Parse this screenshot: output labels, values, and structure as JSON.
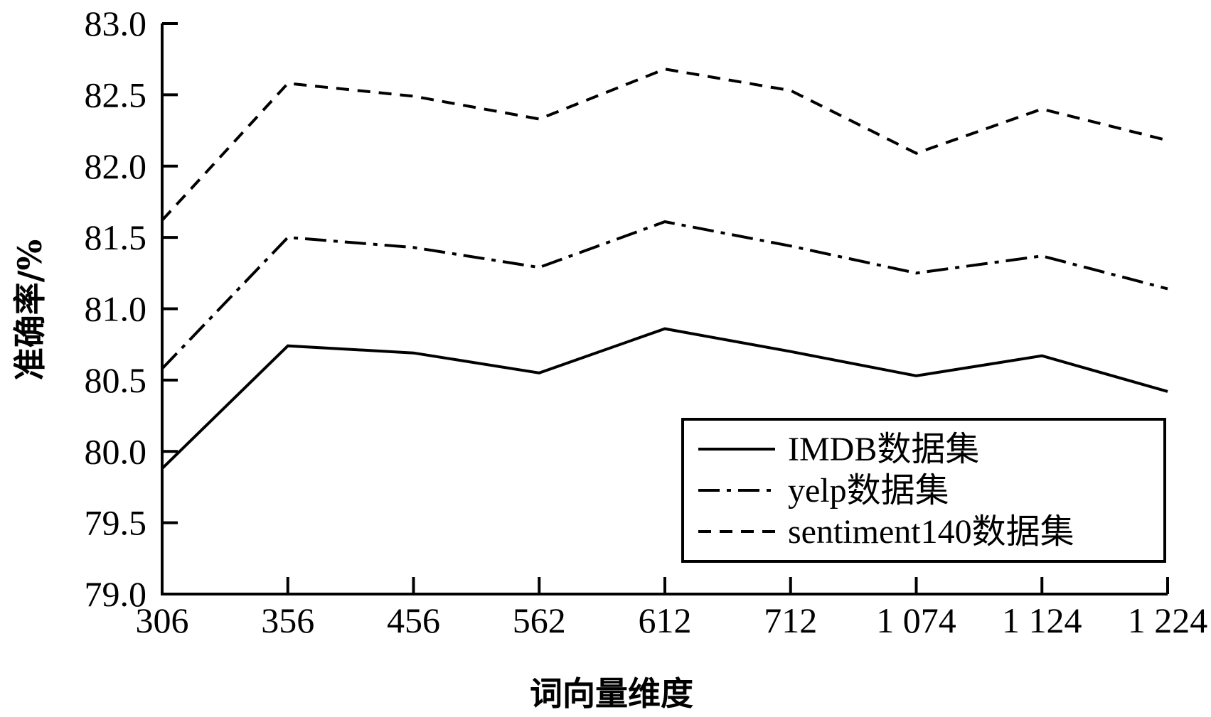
{
  "chart_data": {
    "type": "line",
    "categories": [
      "306",
      "356",
      "456",
      "562",
      "612",
      "712",
      "1 074",
      "1 124",
      "1 224"
    ],
    "series": [
      {
        "name": "IMDB数据集",
        "values": [
          79.88,
          80.74,
          80.69,
          80.55,
          80.86,
          80.7,
          80.53,
          80.67,
          80.42
        ],
        "style": "solid"
      },
      {
        "name": "yelp数据集",
        "values": [
          80.58,
          81.5,
          81.43,
          81.29,
          81.61,
          81.44,
          81.25,
          81.37,
          81.14
        ],
        "style": "dashdot"
      },
      {
        "name": "sentiment140数据集",
        "values": [
          81.62,
          82.58,
          82.49,
          82.33,
          82.68,
          82.53,
          82.09,
          82.4,
          82.18
        ],
        "style": "dashed"
      }
    ],
    "title": "",
    "xlabel": "词向量维度",
    "ylabel": "准确率/%",
    "ylim": [
      79.0,
      83.0
    ],
    "yticks": [
      "79.0",
      "79.5",
      "80.0",
      "80.5",
      "81.0",
      "81.5",
      "82.0",
      "82.5",
      "83.0"
    ],
    "grid": false,
    "legend_position": "bottom-right",
    "line_color": "#000000"
  }
}
